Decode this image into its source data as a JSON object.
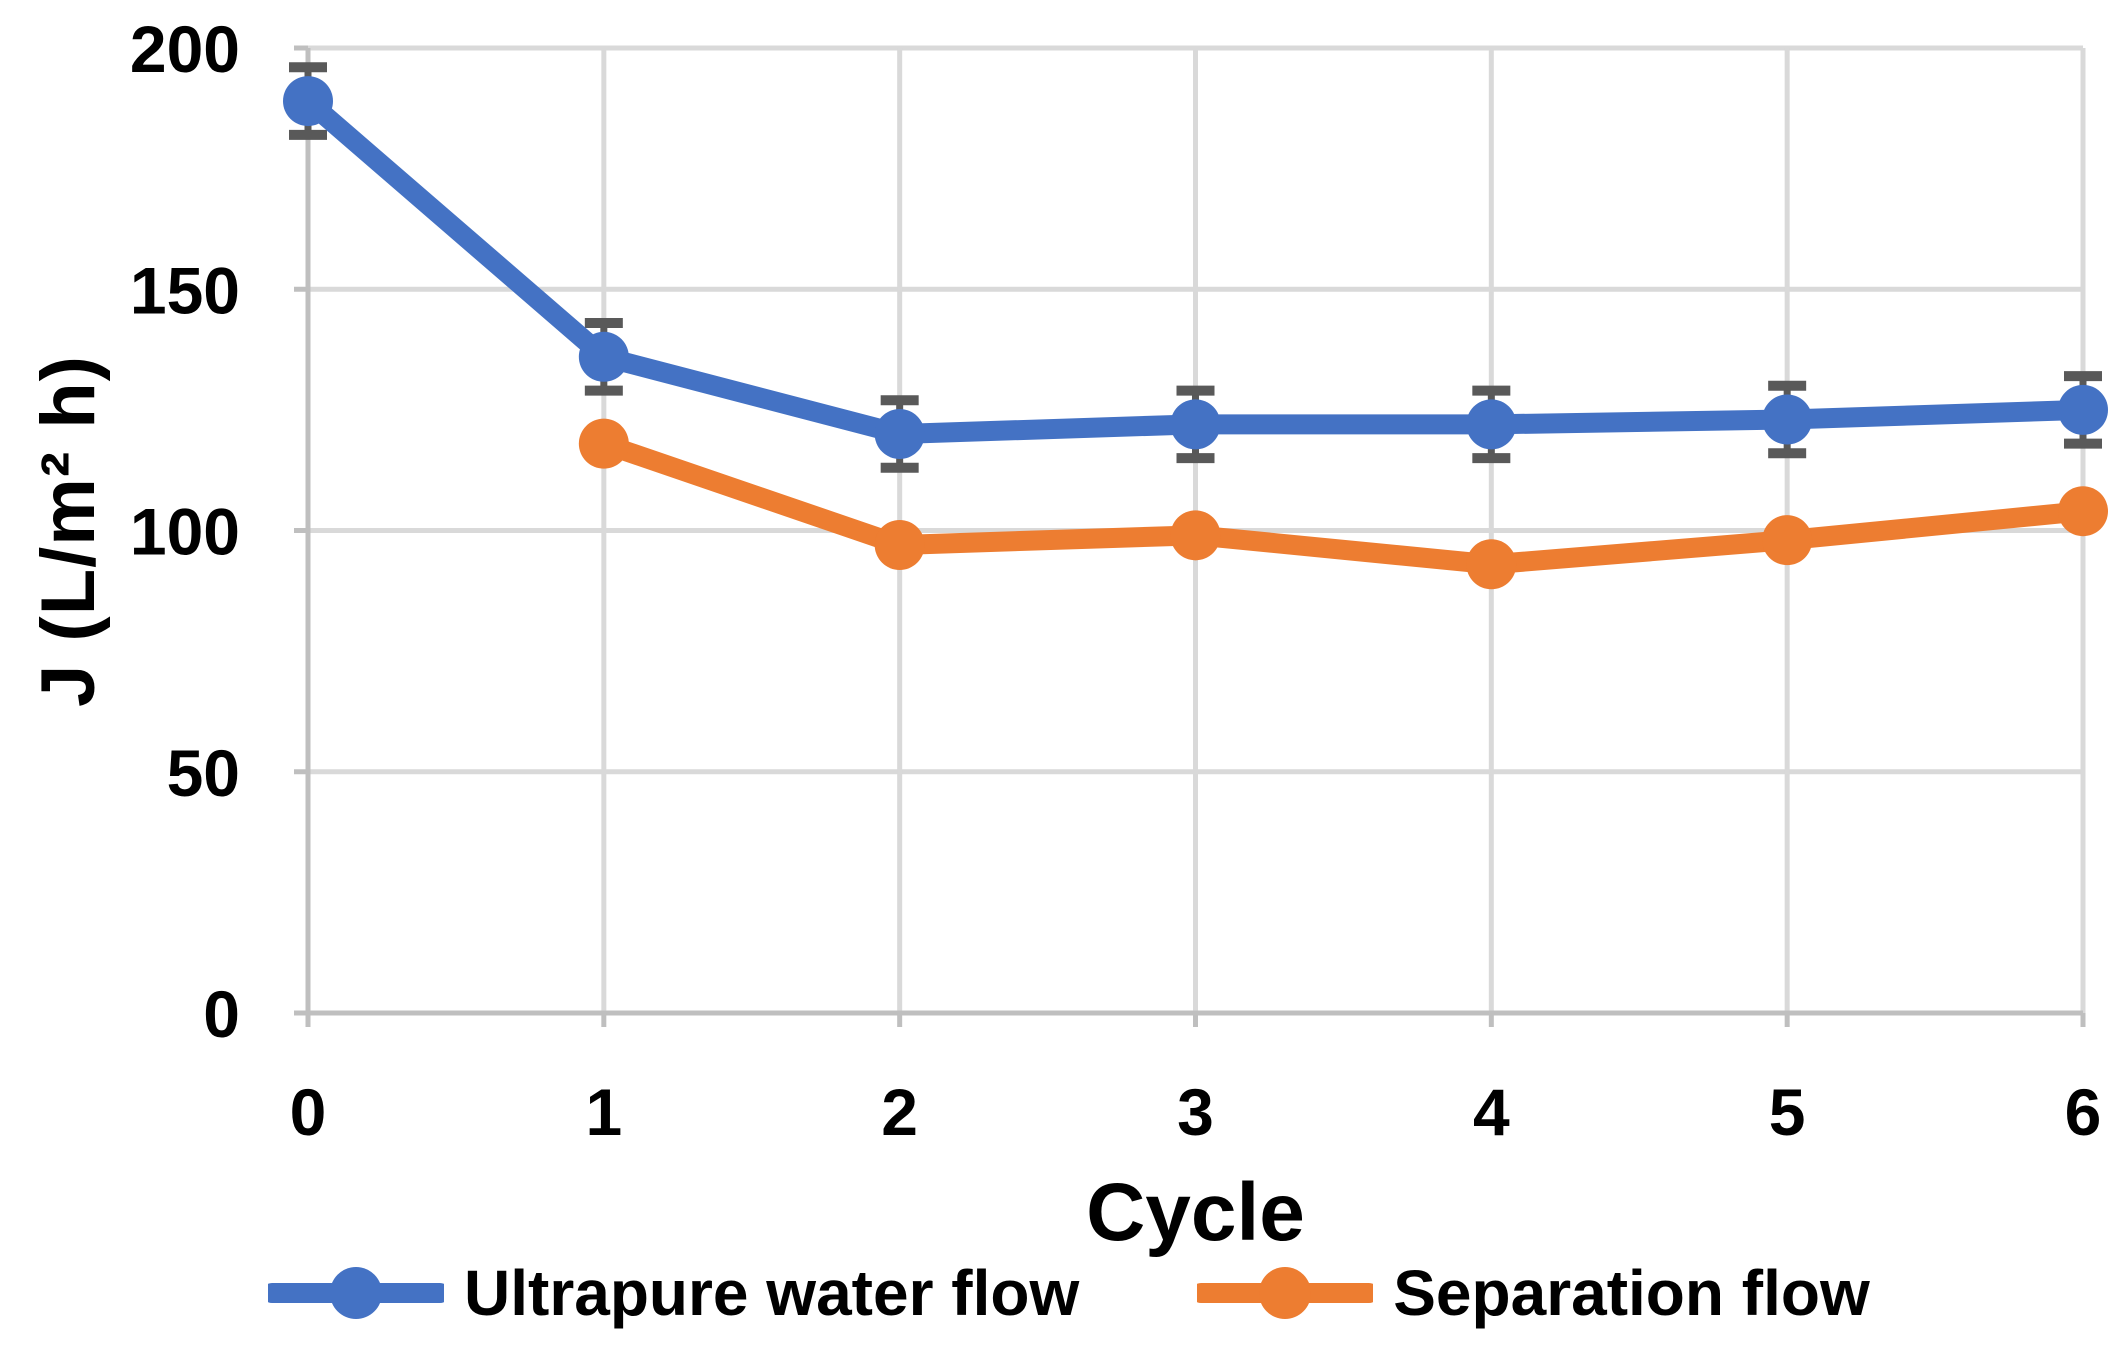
{
  "chart_data": {
    "type": "line",
    "title": "",
    "xlabel": "Cycle",
    "ylabel": "J (L/m² h)",
    "xlim": [
      0,
      6
    ],
    "ylim": [
      0,
      200
    ],
    "x_ticks": [
      0,
      1,
      2,
      3,
      4,
      5,
      6
    ],
    "y_ticks": [
      0,
      50,
      100,
      150,
      200
    ],
    "grid": true,
    "legend_position": "bottom",
    "series": [
      {
        "name": "Ultrapure water flow",
        "color": "#4472C4",
        "x": [
          0,
          1,
          2,
          3,
          4,
          5,
          6
        ],
        "values": [
          189,
          136,
          120,
          122,
          122,
          123,
          125
        ],
        "error": [
          7,
          7,
          7,
          7,
          7,
          7,
          7
        ]
      },
      {
        "name": "Separation flow",
        "color": "#ED7D31",
        "x": [
          1,
          2,
          3,
          4,
          5,
          6
        ],
        "values": [
          118,
          97,
          99,
          93,
          98,
          104
        ],
        "error": [
          0,
          0,
          0,
          0,
          0,
          0
        ]
      }
    ],
    "colors": {
      "gridline": "#D9D9D9",
      "axis_line": "#BFBFBF",
      "error_bar": "#595959",
      "text": "#000000",
      "background": "#FFFFFF"
    }
  }
}
